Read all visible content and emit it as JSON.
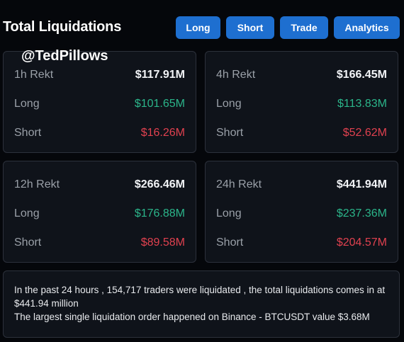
{
  "header": {
    "title": "Total Liquidations",
    "buttons": {
      "long": "Long",
      "short": "Short",
      "trade": "Trade",
      "analytics": "Analytics"
    }
  },
  "watermark": "@TedPillows",
  "cards": {
    "h1": {
      "title": "1h Rekt",
      "total": "$117.91M",
      "long_label": "Long",
      "long": "$101.65M",
      "short_label": "Short",
      "short": "$16.26M"
    },
    "h4": {
      "title": "4h Rekt",
      "total": "$166.45M",
      "long_label": "Long",
      "long": "$113.83M",
      "short_label": "Short",
      "short": "$52.62M"
    },
    "h12": {
      "title": "12h Rekt",
      "total": "$266.46M",
      "long_label": "Long",
      "long": "$176.88M",
      "short_label": "Short",
      "short": "$89.58M"
    },
    "h24": {
      "title": "24h Rekt",
      "total": "$441.94M",
      "long_label": "Long",
      "long": "$237.36M",
      "short_label": "Short",
      "short": "$204.57M"
    }
  },
  "summary": {
    "line1": "In the past 24 hours , 154,717 traders were liquidated , the total liquidations comes in at $441.94 million",
    "line2": "The largest single liquidation order happened on Binance - BTCUSDT value $3.68M"
  },
  "colors": {
    "background": "#05070b",
    "card": "#0f131a",
    "button": "#1e6fd0",
    "long": "#2bb58a",
    "short": "#e0414f"
  }
}
